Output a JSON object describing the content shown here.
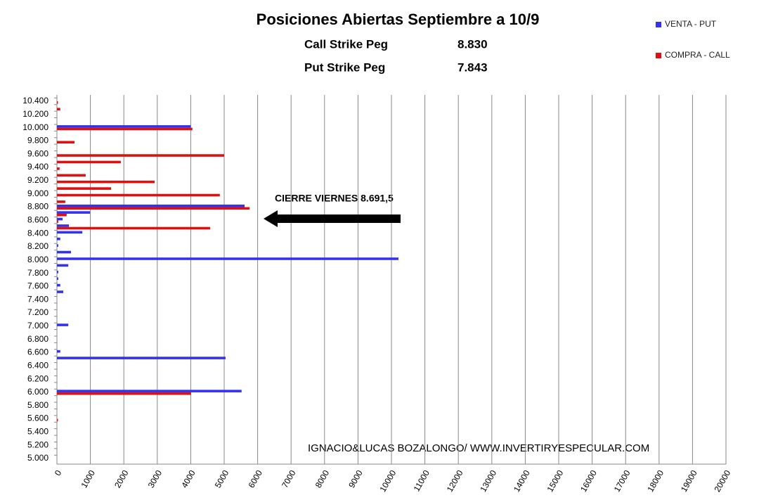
{
  "chart_data": {
    "type": "hbar",
    "title": "Posiciones Abiertas Septiembre a 10/9",
    "stats": [
      {
        "label": "Call Strike Peg",
        "value": "8.830"
      },
      {
        "label": "Put Strike Peg",
        "value": "7.843"
      }
    ],
    "annotation": "CIERRE VIERNES 8.691,5",
    "watermark": "IGNACIO&LUCAS BOZALONGO/ WWW.INVERTIRYESPECULAR.COM",
    "categories": [
      "5.000",
      null,
      "5.200",
      null,
      "5.400",
      null,
      "5.600",
      null,
      "5.800",
      null,
      "6.000",
      null,
      "6.200",
      null,
      "6.400",
      null,
      "6.600",
      null,
      "6.800",
      null,
      "7.000",
      null,
      "7.200",
      null,
      "7.400",
      null,
      "7.600",
      null,
      "7.800",
      null,
      "8.000",
      null,
      "8.200",
      null,
      "8.400",
      null,
      "8.600",
      null,
      "8.800",
      null,
      "9.000",
      null,
      "9.200",
      null,
      "9.400",
      null,
      "9.600",
      null,
      "9.800",
      null,
      "10.000",
      null,
      "10.200",
      null,
      "10.400"
    ],
    "series": [
      {
        "name": "VENTA - PUT",
        "color": "#3333ee",
        "values": [
          0,
          0,
          0,
          0,
          0,
          0,
          0,
          0,
          0,
          0,
          5520,
          0,
          0,
          0,
          0,
          5040,
          100,
          0,
          0,
          0,
          340,
          0,
          0,
          0,
          0,
          190,
          100,
          40,
          40,
          340,
          10210,
          420,
          40,
          100,
          760,
          360,
          170,
          990,
          5610,
          0,
          0,
          0,
          0,
          0,
          0,
          0,
          0,
          0,
          0,
          0,
          4000,
          0,
          0,
          0,
          0
        ]
      },
      {
        "name": "COMPRA - CALL",
        "color": "#dd1111",
        "values": [
          0,
          0,
          0,
          0,
          0,
          0,
          30,
          0,
          0,
          0,
          4010,
          0,
          0,
          0,
          0,
          0,
          0,
          0,
          0,
          0,
          0,
          0,
          0,
          0,
          0,
          0,
          0,
          0,
          0,
          0,
          0,
          0,
          0,
          0,
          0,
          4580,
          40,
          290,
          5760,
          250,
          4870,
          1620,
          2920,
          860,
          80,
          1910,
          5000,
          0,
          525,
          0,
          4050,
          0,
          0,
          100,
          30
        ]
      }
    ],
    "xlim": [
      0,
      20000
    ],
    "xticks": [
      0,
      1000,
      2000,
      3000,
      4000,
      5000,
      6000,
      7000,
      8000,
      9000,
      10000,
      11000,
      12000,
      13000,
      14000,
      15000,
      16000,
      17000,
      18000,
      19000,
      20000
    ],
    "grid": true
  }
}
